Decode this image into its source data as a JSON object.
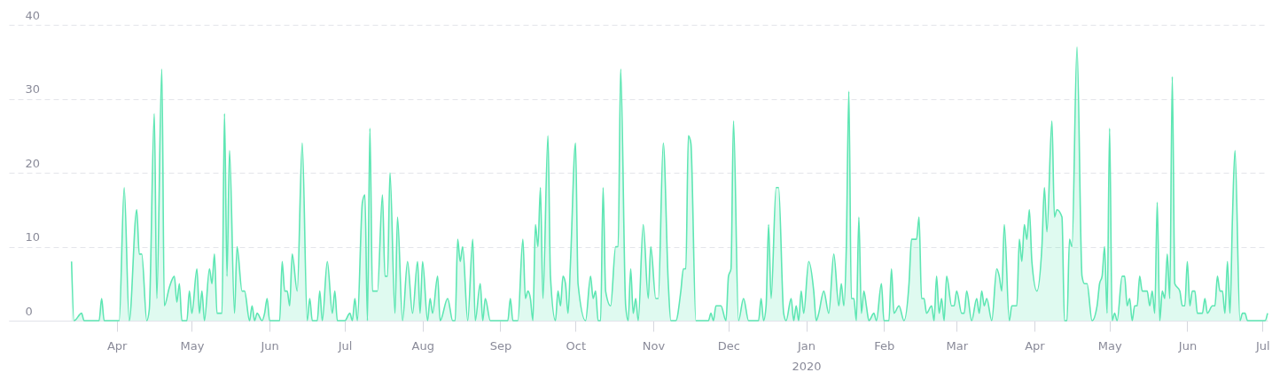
{
  "chart_data": {
    "type": "area",
    "xlabel": "2020",
    "grid": "y",
    "xlim": [
      "2019-02-17",
      "2020-07-03"
    ],
    "xticks": [
      {
        "value": "2019-04-01",
        "label": "Apr"
      },
      {
        "value": "2019-05-01",
        "label": "May"
      },
      {
        "value": "2019-06-01",
        "label": "Jun"
      },
      {
        "value": "2019-07-01",
        "label": "Jul"
      },
      {
        "value": "2019-08-01",
        "label": "Aug"
      },
      {
        "value": "2019-09-01",
        "label": "Sep"
      },
      {
        "value": "2019-10-01",
        "label": "Oct"
      },
      {
        "value": "2019-11-01",
        "label": "Nov"
      },
      {
        "value": "2019-12-01",
        "label": "Dec"
      },
      {
        "value": "2020-01-01",
        "label": "Jan"
      },
      {
        "value": "2020-02-01",
        "label": "Feb"
      },
      {
        "value": "2020-03-01",
        "label": "Mar"
      },
      {
        "value": "2020-04-01",
        "label": "Apr"
      },
      {
        "value": "2020-05-01",
        "label": "May"
      },
      {
        "value": "2020-06-01",
        "label": "Jun"
      },
      {
        "value": "2020-07-01",
        "label": "Jul"
      }
    ],
    "ylim": [
      0,
      40
    ],
    "yticks": [
      0,
      10,
      20,
      30,
      40
    ],
    "x": [
      "2019-03-14",
      "2019-03-15",
      "2019-03-18",
      "2019-03-19",
      "2019-03-25",
      "2019-03-26",
      "2019-03-27",
      "2019-04-02",
      "2019-04-04",
      "2019-04-06",
      "2019-04-09",
      "2019-04-10",
      "2019-04-11",
      "2019-04-13",
      "2019-04-14",
      "2019-04-16",
      "2019-04-17",
      "2019-04-19",
      "2019-04-20",
      "2019-04-22",
      "2019-04-24",
      "2019-04-25",
      "2019-04-26",
      "2019-04-27",
      "2019-04-29",
      "2019-04-30",
      "2019-05-01",
      "2019-05-03",
      "2019-05-04",
      "2019-05-05",
      "2019-05-06",
      "2019-05-08",
      "2019-05-09",
      "2019-05-10",
      "2019-05-11",
      "2019-05-13",
      "2019-05-14",
      "2019-05-15",
      "2019-05-16",
      "2019-05-18",
      "2019-05-19",
      "2019-05-21",
      "2019-05-22",
      "2019-05-24",
      "2019-05-25",
      "2019-05-26",
      "2019-05-27",
      "2019-05-29",
      "2019-05-30",
      "2019-05-31",
      "2019-06-01",
      "2019-06-05",
      "2019-06-06",
      "2019-06-07",
      "2019-06-08",
      "2019-06-09",
      "2019-06-10",
      "2019-06-12",
      "2019-06-14",
      "2019-06-16",
      "2019-06-17",
      "2019-06-18",
      "2019-06-20",
      "2019-06-21",
      "2019-06-22",
      "2019-06-24",
      "2019-06-26",
      "2019-06-27",
      "2019-06-28",
      "2019-07-01",
      "2019-07-03",
      "2019-07-04",
      "2019-07-05",
      "2019-07-06",
      "2019-07-08",
      "2019-07-09",
      "2019-07-10",
      "2019-07-11",
      "2019-07-12",
      "2019-07-14",
      "2019-07-16",
      "2019-07-17",
      "2019-07-18",
      "2019-07-19",
      "2019-07-21",
      "2019-07-22",
      "2019-07-24",
      "2019-07-26",
      "2019-07-28",
      "2019-07-30",
      "2019-07-31",
      "2019-08-01",
      "2019-08-03",
      "2019-08-04",
      "2019-08-05",
      "2019-08-07",
      "2019-08-08",
      "2019-08-11",
      "2019-08-13",
      "2019-08-14",
      "2019-08-15",
      "2019-08-16",
      "2019-08-17",
      "2019-08-19",
      "2019-08-21",
      "2019-08-22",
      "2019-08-24",
      "2019-08-25",
      "2019-08-26",
      "2019-08-28",
      "2019-09-04",
      "2019-09-05",
      "2019-09-06",
      "2019-09-08",
      "2019-09-10",
      "2019-09-11",
      "2019-09-12",
      "2019-09-13",
      "2019-09-14",
      "2019-09-15",
      "2019-09-16",
      "2019-09-17",
      "2019-09-18",
      "2019-09-20",
      "2019-09-21",
      "2019-09-23",
      "2019-09-24",
      "2019-09-25",
      "2019-09-26",
      "2019-09-27",
      "2019-09-28",
      "2019-09-29",
      "2019-10-01",
      "2019-10-02",
      "2019-10-05",
      "2019-10-07",
      "2019-10-08",
      "2019-10-09",
      "2019-10-10",
      "2019-10-11",
      "2019-10-12",
      "2019-10-13",
      "2019-10-15",
      "2019-10-17",
      "2019-10-18",
      "2019-10-19",
      "2019-10-21",
      "2019-10-22",
      "2019-10-23",
      "2019-10-24",
      "2019-10-25",
      "2019-10-26",
      "2019-10-28",
      "2019-10-30",
      "2019-10-31",
      "2019-11-02",
      "2019-11-03",
      "2019-11-05",
      "2019-11-07",
      "2019-11-08",
      "2019-11-10",
      "2019-11-12",
      "2019-11-13",
      "2019-11-14",
      "2019-11-15",
      "2019-11-16",
      "2019-11-18",
      "2019-11-23",
      "2019-11-24",
      "2019-11-25",
      "2019-11-26",
      "2019-11-28",
      "2019-11-30",
      "2019-12-01",
      "2019-12-02",
      "2019-12-03",
      "2019-12-05",
      "2019-12-07",
      "2019-12-09",
      "2019-12-13",
      "2019-12-14",
      "2019-12-15",
      "2019-12-16",
      "2019-12-17",
      "2019-12-18",
      "2019-12-20",
      "2019-12-21",
      "2019-12-23",
      "2019-12-24",
      "2019-12-26",
      "2019-12-27",
      "2019-12-28",
      "2019-12-29",
      "2019-12-30",
      "2019-12-31",
      "2020-01-02",
      "2020-01-04",
      "2020-01-05",
      "2020-01-06",
      "2020-01-08",
      "2020-01-10",
      "2020-01-12",
      "2020-01-14",
      "2020-01-15",
      "2020-01-16",
      "2020-01-17",
      "2020-01-18",
      "2020-01-19",
      "2020-01-20",
      "2020-01-21",
      "2020-01-22",
      "2020-01-23",
      "2020-01-24",
      "2020-01-25",
      "2020-01-26",
      "2020-01-28",
      "2020-01-29",
      "2020-01-31",
      "2020-02-01",
      "2020-02-03",
      "2020-02-04",
      "2020-02-05",
      "2020-02-07",
      "2020-02-09",
      "2020-02-11",
      "2020-02-12",
      "2020-02-14",
      "2020-02-15",
      "2020-02-16",
      "2020-02-17",
      "2020-02-18",
      "2020-02-20",
      "2020-02-21",
      "2020-02-22",
      "2020-02-23",
      "2020-02-24",
      "2020-02-25",
      "2020-02-26",
      "2020-02-28",
      "2020-02-29",
      "2020-03-01",
      "2020-03-03",
      "2020-03-04",
      "2020-03-05",
      "2020-03-07",
      "2020-03-09",
      "2020-03-10",
      "2020-03-11",
      "2020-03-12",
      "2020-03-13",
      "2020-03-15",
      "2020-03-17",
      "2020-03-18",
      "2020-03-19",
      "2020-03-20",
      "2020-03-22",
      "2020-03-23",
      "2020-03-25",
      "2020-03-26",
      "2020-03-27",
      "2020-03-28",
      "2020-03-29",
      "2020-03-30",
      "2020-03-31",
      "2020-04-02",
      "2020-04-04",
      "2020-04-05",
      "2020-04-06",
      "2020-04-08",
      "2020-04-09",
      "2020-04-10",
      "2020-04-12",
      "2020-04-13",
      "2020-04-14",
      "2020-04-15",
      "2020-04-16",
      "2020-04-18",
      "2020-04-20",
      "2020-04-21",
      "2020-04-22",
      "2020-04-24",
      "2020-04-26",
      "2020-04-27",
      "2020-04-28",
      "2020-04-29",
      "2020-04-30",
      "2020-05-01",
      "2020-05-02",
      "2020-05-03",
      "2020-05-04",
      "2020-05-06",
      "2020-05-07",
      "2020-05-08",
      "2020-05-09",
      "2020-05-10",
      "2020-05-11",
      "2020-05-12",
      "2020-05-13",
      "2020-05-14",
      "2020-05-16",
      "2020-05-17",
      "2020-05-18",
      "2020-05-19",
      "2020-05-20",
      "2020-05-21",
      "2020-05-22",
      "2020-05-23",
      "2020-05-24",
      "2020-05-25",
      "2020-05-26",
      "2020-05-27",
      "2020-05-29",
      "2020-05-30",
      "2020-05-31",
      "2020-06-01",
      "2020-06-02",
      "2020-06-03",
      "2020-06-04",
      "2020-06-05",
      "2020-06-07",
      "2020-06-08",
      "2020-06-09",
      "2020-06-11",
      "2020-06-12",
      "2020-06-13",
      "2020-06-14",
      "2020-06-15",
      "2020-06-16",
      "2020-06-17",
      "2020-06-18",
      "2020-06-19",
      "2020-06-20",
      "2020-06-22",
      "2020-06-23",
      "2020-06-24",
      "2020-06-25",
      "2020-07-02",
      "2020-07-03"
    ],
    "series": [
      {
        "color": "#5ee6b3",
        "values": [
          8,
          0,
          1,
          0,
          0,
          3,
          0,
          0,
          18,
          0,
          15,
          9,
          9,
          0,
          1.5,
          28,
          3,
          34,
          2,
          4.5,
          6,
          2.5,
          5,
          0,
          0,
          4,
          1,
          7,
          1,
          4,
          0,
          7,
          5,
          9,
          1,
          1,
          28,
          6,
          23,
          1,
          10,
          4,
          4,
          0,
          2,
          0,
          1,
          0,
          1,
          3,
          0,
          0,
          8,
          4,
          4,
          2,
          9,
          4,
          24,
          0,
          3,
          0,
          0,
          4,
          0,
          8,
          1,
          4,
          0,
          0,
          1,
          0,
          3,
          0,
          16,
          17,
          0,
          26,
          4,
          4,
          17,
          6,
          6,
          20,
          1,
          14,
          0,
          8,
          1,
          8,
          1,
          8,
          0,
          3,
          1,
          6,
          0,
          3,
          0,
          0,
          11,
          8,
          10,
          0,
          11,
          0,
          5,
          0,
          3,
          0,
          0,
          3,
          0,
          0,
          11,
          3,
          4,
          3,
          0,
          13,
          10,
          18,
          3,
          25,
          6,
          0,
          4,
          2,
          6,
          5,
          1,
          8,
          24,
          5,
          0,
          6,
          3,
          4,
          0,
          0,
          18,
          4,
          2,
          10,
          10,
          34,
          2,
          0,
          7,
          1,
          3,
          0,
          13,
          3,
          10,
          3,
          3,
          24,
          5,
          0,
          0,
          4,
          7,
          7,
          25,
          24,
          0,
          0,
          1,
          0,
          2,
          2,
          0,
          6,
          7,
          27,
          0,
          3,
          0,
          0,
          3,
          0,
          2,
          13,
          3,
          18,
          18,
          1,
          0,
          3,
          0,
          2,
          0,
          4,
          1,
          8,
          4,
          0,
          1,
          4,
          1,
          9,
          2,
          5,
          2,
          10,
          31,
          3,
          3,
          0,
          14,
          1,
          4,
          2,
          0,
          1,
          0,
          5,
          0,
          0,
          7,
          1,
          2,
          0,
          5,
          11,
          11,
          14,
          3,
          3,
          1,
          2,
          0,
          6,
          1,
          3,
          0,
          6,
          2,
          2,
          4,
          1,
          1,
          4,
          0,
          3,
          1,
          4,
          2,
          3,
          0,
          7,
          6,
          4,
          13,
          0,
          2,
          2,
          11,
          8,
          13,
          11,
          15,
          8,
          4,
          10,
          18,
          12,
          27,
          14,
          15,
          14,
          0,
          0,
          11,
          10,
          37,
          6,
          5,
          5,
          0,
          2,
          5,
          6,
          10,
          1,
          26,
          0,
          1,
          0,
          6,
          6,
          2,
          3,
          0,
          2,
          2,
          6,
          4,
          4,
          2,
          4,
          1,
          16,
          0,
          4,
          3,
          9,
          3,
          33,
          5,
          4,
          2,
          2,
          8,
          2,
          4,
          4,
          1,
          1,
          3,
          1,
          2,
          2,
          6,
          4,
          4,
          1,
          8,
          1,
          14,
          23,
          0,
          1,
          1,
          0,
          0,
          1
        ]
      }
    ]
  }
}
